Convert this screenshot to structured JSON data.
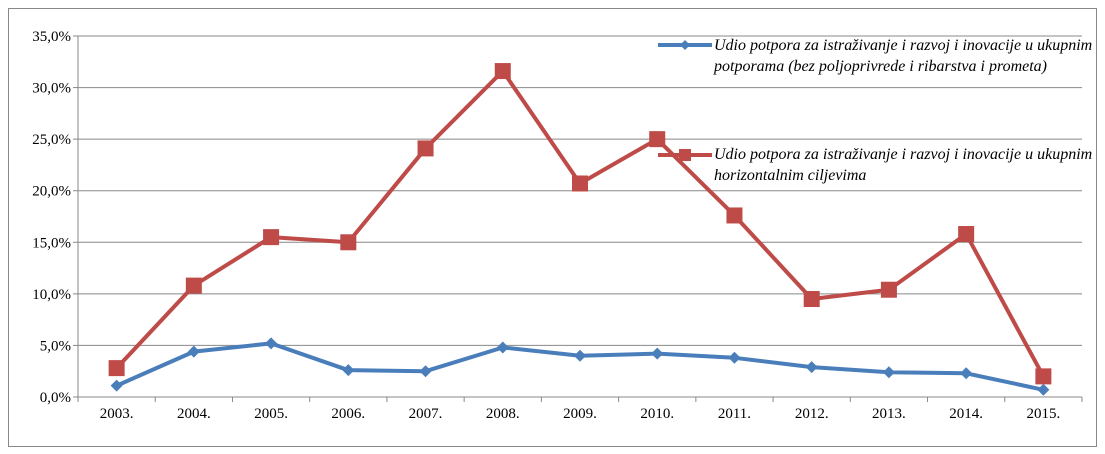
{
  "chart_data": {
    "type": "line",
    "categories": [
      "2003.",
      "2004.",
      "2005.",
      "2006.",
      "2007.",
      "2008.",
      "2009.",
      "2010.",
      "2011.",
      "2012.",
      "2013.",
      "2014.",
      "2015."
    ],
    "series": [
      {
        "name": "Udio potpora za istraživanje i razvoj i inovacije u ukupnim potporama (bez poljoprivrede i ribarstva i prometa)",
        "color": "#4a7ebb",
        "marker": "diamond",
        "values": [
          1.1,
          4.4,
          5.2,
          2.6,
          2.5,
          4.8,
          4.0,
          4.2,
          3.8,
          2.9,
          2.4,
          2.3,
          0.7
        ]
      },
      {
        "name": "Udio potpora za istraživanje i razvoj i inovacije u ukupnim horizontalnim ciljevima",
        "color": "#be4b48",
        "marker": "square",
        "values": [
          2.8,
          10.8,
          15.5,
          15.0,
          24.1,
          31.6,
          20.7,
          25.0,
          17.6,
          9.5,
          10.4,
          15.8,
          2.0
        ]
      }
    ],
    "ylim": [
      0,
      35
    ],
    "yticks": [
      {
        "value": 0,
        "label": "0,0%"
      },
      {
        "value": 5,
        "label": "5,0%"
      },
      {
        "value": 10,
        "label": "10,0%"
      },
      {
        "value": 15,
        "label": "15,0%"
      },
      {
        "value": 20,
        "label": "20,0%"
      },
      {
        "value": 25,
        "label": "25,0%"
      },
      {
        "value": 30,
        "label": "30,0%"
      },
      {
        "value": 35,
        "label": "35,0%"
      }
    ],
    "grid": true,
    "legend": "top-right"
  }
}
